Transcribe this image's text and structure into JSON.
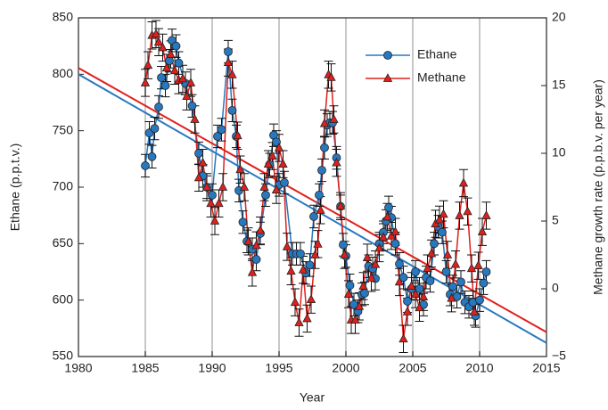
{
  "chart_data": {
    "type": "line",
    "x_label": "Year",
    "y_label": "Ethane (p.p.t.v.)",
    "y2_label": "Methane growth rate (p.p.b.v. per year)",
    "xlim": [
      1980,
      2015
    ],
    "xticks": [
      1980,
      1985,
      1990,
      1995,
      2000,
      2005,
      2010,
      2015
    ],
    "ylim": [
      550,
      850
    ],
    "yticks": [
      550,
      600,
      650,
      700,
      750,
      800,
      850
    ],
    "y2lim": [
      -5,
      20
    ],
    "y2ticks": [
      {
        "value": -5,
        "label": "−5"
      },
      0,
      5,
      10,
      15,
      20
    ],
    "grid": "x",
    "legend": "upper right",
    "series": [
      {
        "name": "Ethane",
        "color": "#2878c0",
        "marker": "circle",
        "error": 10,
        "trend_x": [
          1980,
          2015
        ],
        "trend_y": [
          800,
          562
        ],
        "x": [
          1985.0,
          1985.3,
          1985.5,
          1985.7,
          1986.0,
          1986.2,
          1986.5,
          1986.8,
          1987.0,
          1987.3,
          1987.5,
          1988.0,
          1988.5,
          1989.0,
          1989.3,
          1989.6,
          1990.0,
          1990.4,
          1990.7,
          1991.2,
          1991.5,
          1991.8,
          1992.0,
          1992.3,
          1992.6,
          1993.0,
          1993.3,
          1993.6,
          1994.0,
          1994.3,
          1994.6,
          1994.8,
          1995.0,
          1995.4,
          1996.0,
          1996.3,
          1996.6,
          1997.0,
          1997.3,
          1997.6,
          1998.0,
          1998.2,
          1998.4,
          1998.6,
          1998.8,
          1999.0,
          1999.3,
          1999.6,
          1999.8,
          2000.0,
          2000.3,
          2000.6,
          2000.9,
          2001.2,
          2001.4,
          2001.7,
          2002.0,
          2002.2,
          2002.5,
          2002.8,
          2003.0,
          2003.2,
          2003.4,
          2003.7,
          2004.0,
          2004.3,
          2004.6,
          2004.9,
          2005.2,
          2005.5,
          2005.8,
          2006.0,
          2006.3,
          2006.6,
          2006.9,
          2007.2,
          2007.5,
          2007.8,
          2008.0,
          2008.3,
          2008.6,
          2008.9,
          2009.2,
          2009.5,
          2009.7,
          2010.0,
          2010.3,
          2010.5
        ],
        "values": [
          719,
          748,
          727,
          752,
          771,
          797,
          790,
          812,
          830,
          825,
          810,
          792,
          772,
          730,
          710,
          700,
          693,
          745,
          751,
          820,
          768,
          745,
          697,
          669,
          652,
          645,
          636,
          659,
          693,
          720,
          746,
          740,
          702,
          704,
          641,
          641,
          641,
          624,
          631,
          674,
          693,
          715,
          735,
          755,
          757,
          757,
          726,
          683,
          649,
          639,
          613,
          596,
          590,
          605,
          606,
          630,
          628,
          619,
          650,
          660,
          670,
          682,
          673,
          650,
          632,
          620,
          599,
          610,
          625,
          610,
          596,
          620,
          617,
          650,
          665,
          660,
          625,
          605,
          612,
          603,
          616,
          598,
          594,
          598,
          586,
          600,
          615,
          625
        ]
      },
      {
        "name": "Methane",
        "color": "#e0201c",
        "marker": "triangle",
        "axis": "y2",
        "error": 1,
        "trend_x": [
          1980,
          2015
        ],
        "trend_y": [
          16.3,
          -3.2
        ],
        "x": [
          1985.0,
          1985.2,
          1985.5,
          1985.8,
          1986.0,
          1986.3,
          1986.6,
          1986.9,
          1987.2,
          1987.5,
          1987.8,
          1988.1,
          1988.4,
          1988.7,
          1989.0,
          1989.3,
          1989.6,
          1989.9,
          1990.2,
          1990.5,
          1990.8,
          1991.2,
          1991.5,
          1991.9,
          1992.1,
          1992.4,
          1992.7,
          1993.0,
          1993.3,
          1993.6,
          1993.9,
          1994.2,
          1994.5,
          1994.8,
          1995.0,
          1995.3,
          1995.6,
          1995.9,
          1996.2,
          1996.5,
          1996.8,
          1997.1,
          1997.4,
          1997.7,
          1997.9,
          1998.1,
          1998.4,
          1998.7,
          1998.9,
          1999.1,
          1999.3,
          1999.6,
          1999.9,
          2000.2,
          2000.4,
          2000.7,
          2001.0,
          2001.3,
          2001.6,
          2001.9,
          2002.2,
          2002.5,
          2002.8,
          2003.1,
          2003.4,
          2003.7,
          2004.0,
          2004.3,
          2004.6,
          2004.9,
          2005.2,
          2005.5,
          2005.8,
          2006.1,
          2006.4,
          2006.7,
          2007.0,
          2007.3,
          2007.6,
          2007.9,
          2008.2,
          2008.5,
          2008.8,
          2009.1,
          2009.4,
          2009.6,
          2009.9,
          2010.2,
          2010.5
        ],
        "values": [
          15.2,
          16.5,
          18.7,
          18.8,
          18.2,
          17.8,
          16.3,
          17.3,
          16.1,
          15.4,
          15.5,
          14.2,
          15.2,
          12.5,
          8.2,
          9.3,
          7.5,
          6.3,
          5.0,
          6.3,
          7.5,
          16.7,
          15.8,
          11.3,
          8.8,
          7.5,
          3.5,
          1.2,
          3.2,
          4.3,
          7.5,
          9.2,
          9.8,
          7.3,
          10.4,
          9.2,
          3.1,
          1.3,
          -1.0,
          -2.5,
          1.4,
          -2.2,
          -0.8,
          2.5,
          3.3,
          5.8,
          12.2,
          15.8,
          15.6,
          12.5,
          9.3,
          6.1,
          2.5,
          -0.4,
          -2.3,
          -2.3,
          -1.3,
          0.2,
          2.3,
          0.8,
          1.8,
          3.0,
          3.8,
          5.3,
          3.9,
          4.2,
          0.5,
          -3.7,
          -1.7,
          0.2,
          -0.4,
          -1.4,
          -0.6,
          1.5,
          2.6,
          4.8,
          5.1,
          5.5,
          2.5,
          -0.7,
          1.8,
          5.4,
          7.8,
          5.7,
          1.5,
          -1.7,
          1.7,
          4.2,
          5.4
        ]
      }
    ]
  }
}
